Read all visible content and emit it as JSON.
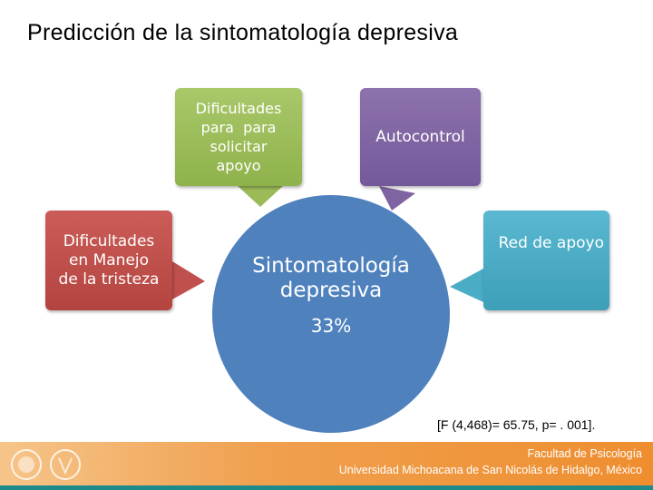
{
  "title": "Predicción de la sintomatología depresiva",
  "nodes": [
    {
      "lines": [
        "Dificultades",
        "para  para",
        "solicitar",
        "apoyo"
      ]
    },
    {
      "lines": [
        "Autocontrol"
      ]
    },
    {
      "lines": [
        "Dificultades",
        "en Manejo",
        "de la tristeza"
      ]
    },
    {
      "lines": [
        "Red de apoyo"
      ]
    }
  ],
  "center": {
    "lines": [
      "Sintomatología",
      "depresiva"
    ],
    "value": "33%"
  },
  "statistic": "[F (4,468)= 65.75, p= . 001].",
  "footer": {
    "faculty": "Facultad de Psicología",
    "university": "Universidad Michoacana de San Nicolás de Hidalgo, México"
  }
}
